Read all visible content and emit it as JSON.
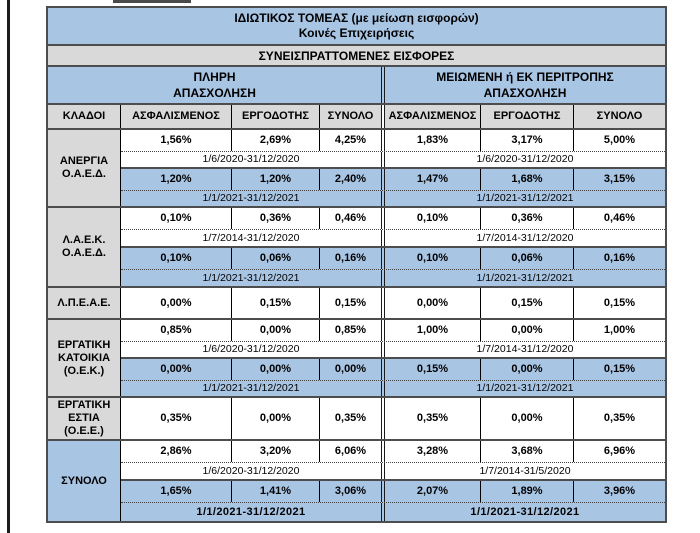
{
  "colors": {
    "header_blue": "#a9c5e4",
    "header_gray": "#d9d9d9",
    "highlight_row_blue": "#a9c5e4",
    "border_dark": "#4d4d4d"
  },
  "table": {
    "title_line1": "ΙΔΙΩΤΙΚΟΣ ΤΟΜΕΑΣ (με μείωση εισφορών)",
    "title_line2": "Κοινές Επιχειρήσεις",
    "subtitle": "ΣΥΝΕΙΣΠΡΑΤΤΟΜΕΝΕΣ ΕΙΣΦΟΡΕΣ",
    "group1_line1": "ΠΛΗΡΗ",
    "group1_line2": "ΑΠΑΣΧΟΛΗΣΗ",
    "group2_line1": "ΜΕΙΩΜΕΝΗ ή ΕΚ ΠΕΡΙΤΡΟΠΗΣ",
    "group2_line2": "ΑΠΑΣΧΟΛΗΣΗ",
    "column_headers": [
      "ΚΛΑΔΟΙ",
      "ΑΣΦΑΛΙΣΜΕΝΟΣ",
      "ΕΡΓΟΔΟΤΗΣ",
      "ΣΥΝΟΛΟ",
      "ΑΣΦΑΛΙΣΜΕΝΟΣ",
      "ΕΡΓΟΔΟΤΗΣ",
      "ΣΥΝΟΛΟ"
    ],
    "rows": {
      "anergia": {
        "label_line1": "ΑΝΕΡΓΙΑ",
        "label_line2": "Ο.Α.Ε.Δ.",
        "p1_full": [
          "1,56%",
          "2,69%",
          "4,25%"
        ],
        "p1_full_date": "1/6/2020-31/12/2020",
        "p1_red": [
          "1,83%",
          "3,17%",
          "5,00%"
        ],
        "p1_red_date": "1/6/2020-31/12/2020",
        "p2_full": [
          "1,20%",
          "1,20%",
          "2,40%"
        ],
        "p2_full_date": "1/1/2021-31/12/2021",
        "p2_red": [
          "1,47%",
          "1,68%",
          "3,15%"
        ],
        "p2_red_date": "1/1/2021-31/12/2021"
      },
      "laek": {
        "label_line1": "Λ.Α.Ε.Κ.",
        "label_line2": "Ο.Α.Ε.Δ.",
        "p1_full": [
          "0,10%",
          "0,36%",
          "0,46%"
        ],
        "p1_full_date": "1/7/2014-31/12/2020",
        "p1_red": [
          "0,10%",
          "0,36%",
          "0,46%"
        ],
        "p1_red_date": "1/7/2014-31/12/2020",
        "p2_full": [
          "0,10%",
          "0,06%",
          "0,16%"
        ],
        "p2_full_date": "1/1/2021-31/12/2021",
        "p2_red": [
          "0,10%",
          "0,06%",
          "0,16%"
        ],
        "p2_red_date": "1/1/2021-31/12/2021"
      },
      "lpeae": {
        "label_line1": "Λ.Π.Ε.Α.Ε.",
        "p1_full": [
          "0,00%",
          "0,15%",
          "0,15%"
        ],
        "p1_red": [
          "0,00%",
          "0,15%",
          "0,15%"
        ]
      },
      "katoikia": {
        "label_line1": "ΕΡΓΑΤΙΚΗ",
        "label_line2": "ΚΑΤΟΙΚΙΑ",
        "label_line3": "(Ο.Ε.Κ.)",
        "p1_full": [
          "0,85%",
          "0,00%",
          "0,85%"
        ],
        "p1_full_date": "1/6/2020-31/12/2020",
        "p1_red": [
          "1,00%",
          "0,00%",
          "1,00%"
        ],
        "p1_red_date": "1/7/2014-31/12/2020",
        "p2_full": [
          "0,00%",
          "0,00%",
          "0,00%"
        ],
        "p2_full_date": "1/1/2021-31/12/2021",
        "p2_red": [
          "0,15%",
          "0,00%",
          "0,15%"
        ],
        "p2_red_date": "1/1/2021-31/12/2021"
      },
      "estia": {
        "label_line1": "ΕΡΓΑΤΙΚΗ",
        "label_line2": "ΕΣΤΙΑ",
        "label_line3": "(Ο.Ε.Ε.)",
        "p1_full": [
          "0,35%",
          "0,00%",
          "0,35%"
        ],
        "p1_red": [
          "0,35%",
          "0,00%",
          "0,35%"
        ]
      },
      "synolo": {
        "label_line1": "ΣΥΝΟΛΟ",
        "p1_full": [
          "2,86%",
          "3,20%",
          "6,06%"
        ],
        "p1_full_date": "1/6/2020-31/12/2020",
        "p1_red": [
          "3,28%",
          "3,68%",
          "6,96%"
        ],
        "p1_red_date": "1/7/2014-31/5/2020",
        "p2_full": [
          "1,65%",
          "1,41%",
          "3,06%"
        ],
        "p2_full_date": "1/1/2021-31/12/2021",
        "p2_red": [
          "2,07%",
          "1,89%",
          "3,96%"
        ],
        "p2_red_date": "1/1/2021-31/12/2021"
      }
    }
  }
}
